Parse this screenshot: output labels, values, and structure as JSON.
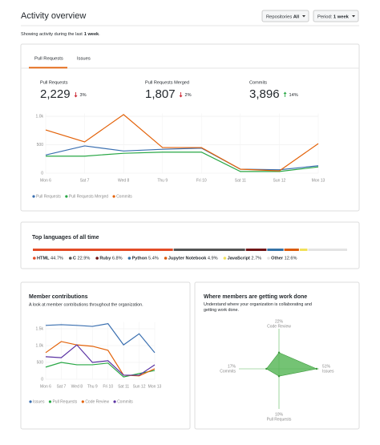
{
  "header": {
    "title": "Activity overview",
    "filters": [
      {
        "label": "Repositories",
        "value": "All"
      },
      {
        "label": "Period:",
        "value": "1 week"
      }
    ],
    "subtitle": {
      "text": "Showing activity during the last",
      "value": "1 week",
      "end": "."
    }
  },
  "tabs": [
    "Pull Requests",
    "Issues"
  ],
  "stats": [
    {
      "label": "Pull Requests",
      "value": "2,229",
      "change": "3%",
      "direction": "down"
    },
    {
      "label": "Pull Requests Merged",
      "value": "1,807",
      "change": "2%",
      "direction": "down"
    },
    {
      "label": "Commits",
      "value": "3,896",
      "change": "14%",
      "direction": "up"
    }
  ],
  "chart_data": [
    {
      "type": "line",
      "categories": [
        "Mon 6",
        "Sat 7",
        "Wed 8",
        "Thu 9",
        "Fri 10",
        "Sat 11",
        "Sun 12",
        "Mon 13"
      ],
      "series": [
        {
          "name": "Pull Requests",
          "color": "#3a6fb0",
          "values": [
            320,
            480,
            390,
            420,
            440,
            70,
            60,
            130
          ]
        },
        {
          "name": "Pull Requests Merged",
          "color": "#28a745",
          "values": [
            300,
            300,
            350,
            370,
            370,
            30,
            30,
            110
          ]
        },
        {
          "name": "Commits",
          "color": "#e36209",
          "values": [
            760,
            550,
            1030,
            450,
            450,
            70,
            40,
            520
          ]
        }
      ],
      "ylim": [
        0,
        1050
      ],
      "yticks": [
        0,
        500,
        {
          "value": 1000,
          "label": "1.0k"
        }
      ],
      "grid": true,
      "legend": "bottom"
    },
    {
      "type": "stacked-bar",
      "title": "Top languages of all time",
      "categories": [
        "HTML",
        "C",
        "Ruby",
        "Python",
        "Jupyter Notebook",
        "JavaScript",
        "Other"
      ],
      "values": [
        44.7,
        22.9,
        6.8,
        5.4,
        4.9,
        2.7,
        12.6
      ],
      "value_labels": [
        "44.7%",
        "22.9%",
        "6.8%",
        "5.4%",
        "4.9%",
        "2.7%",
        "12.6%"
      ],
      "colors": [
        "#e34c26",
        "#555555",
        "#701516",
        "#3572a5",
        "#da5b0b",
        "#f1e05a",
        "#e4e4e4"
      ]
    },
    {
      "type": "line",
      "title": "Member contributions",
      "subtitle": "A look at member contributions throughout the organization.",
      "categories": [
        "Mon 6",
        "Sat 7",
        "Wed 8",
        "Thu 9",
        "Fri 10",
        "Sat 11",
        "Sun 12",
        "Mon 13"
      ],
      "series": [
        {
          "name": "Issues",
          "color": "#3a6fb0",
          "values": [
            1600,
            1620,
            1600,
            1570,
            1650,
            1020,
            1350,
            790
          ]
        },
        {
          "name": "Pull Requests",
          "color": "#28a745",
          "values": [
            360,
            500,
            430,
            430,
            480,
            70,
            170,
            260
          ]
        },
        {
          "name": "Code Review",
          "color": "#e36209",
          "values": [
            790,
            1120,
            1020,
            980,
            860,
            120,
            100,
            310
          ]
        },
        {
          "name": "Commits",
          "color": "#5a32a3",
          "values": [
            670,
            640,
            1020,
            500,
            550,
            120,
            120,
            430
          ]
        }
      ],
      "ylim": [
        0,
        1700
      ],
      "yticks": [
        0,
        500,
        {
          "value": 1000,
          "label": "1.0k"
        },
        {
          "value": 1500,
          "label": "1.5k"
        }
      ],
      "grid": true,
      "legend": "bottom"
    },
    {
      "type": "radar",
      "title": "Where members are getting work done",
      "subtitle": "Understand where your organization is collaborating and getting work done.",
      "categories": [
        "Code Review",
        "Issues",
        "Pull Requests",
        "Commits"
      ],
      "values": [
        22,
        51,
        10,
        17
      ],
      "value_labels": [
        "22%",
        "51%",
        "10%",
        "17%"
      ],
      "color": "#5cb85c"
    }
  ]
}
